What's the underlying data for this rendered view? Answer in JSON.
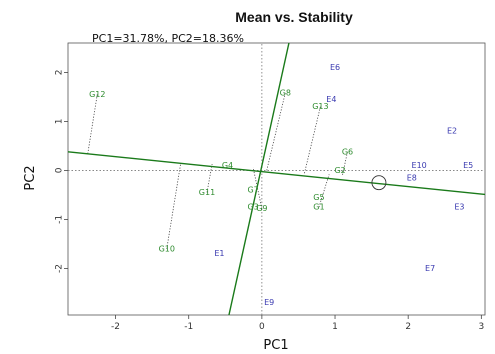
{
  "chart_data": {
    "type": "scatter",
    "title": "Mean vs. Stability",
    "subtitle": "PC1=31.78%, PC2=18.36%",
    "xlabel": "PC1",
    "ylabel": "PC2",
    "xlim": [
      -2.65,
      3.05
    ],
    "ylim": [
      -2.95,
      2.6
    ],
    "xticks": [
      -2,
      -1,
      0,
      1,
      2,
      3
    ],
    "yticks": [
      -2,
      -1,
      0,
      1,
      2
    ],
    "grid": false,
    "colors": {
      "genotype": "#2e8b2e",
      "environment": "#3a3ab0",
      "axis": "#1a7a1a",
      "projection": "#444444"
    },
    "genotypes": [
      {
        "name": "G1",
        "x": 0.78,
        "y": -0.75
      },
      {
        "name": "G2",
        "x": 1.07,
        "y": 0.0
      },
      {
        "name": "G3",
        "x": -0.12,
        "y": -0.75
      },
      {
        "name": "G4",
        "x": -0.47,
        "y": 0.1
      },
      {
        "name": "G5",
        "x": 0.78,
        "y": -0.55
      },
      {
        "name": "G6",
        "x": 1.17,
        "y": 0.38
      },
      {
        "name": "G7",
        "x": -0.12,
        "y": -0.4
      },
      {
        "name": "G8",
        "x": 0.32,
        "y": 1.58
      },
      {
        "name": "G9",
        "x": 0.0,
        "y": -0.78
      },
      {
        "name": "G10",
        "x": -1.3,
        "y": -1.6
      },
      {
        "name": "G11",
        "x": -0.75,
        "y": -0.45
      },
      {
        "name": "G12",
        "x": -2.25,
        "y": 1.55
      },
      {
        "name": "G13",
        "x": 0.8,
        "y": 1.3
      }
    ],
    "environments": [
      {
        "name": "E1",
        "x": -0.58,
        "y": -1.7
      },
      {
        "name": "E2",
        "x": 2.6,
        "y": 0.8
      },
      {
        "name": "E3",
        "x": 2.7,
        "y": -0.75
      },
      {
        "name": "E4",
        "x": 0.95,
        "y": 1.45
      },
      {
        "name": "E5",
        "x": 2.82,
        "y": 0.1
      },
      {
        "name": "E6",
        "x": 1.0,
        "y": 2.1
      },
      {
        "name": "E7",
        "x": 2.3,
        "y": -2.0
      },
      {
        "name": "E8",
        "x": 2.05,
        "y": -0.15
      },
      {
        "name": "E9",
        "x": 0.1,
        "y": -2.7
      },
      {
        "name": "E10",
        "x": 2.15,
        "y": 0.1
      }
    ],
    "mean_axis": {
      "from": [
        -2.65,
        0.38
      ],
      "to": [
        3.05,
        -0.49
      ]
    },
    "stability_axis": {
      "from": [
        -0.45,
        -2.95
      ],
      "to": [
        0.37,
        2.6
      ]
    },
    "mean_environment_marker": {
      "x": 1.6,
      "y": -0.25
    },
    "projections": [
      {
        "label": "G12",
        "from": [
          -2.25,
          1.55
        ],
        "to": [
          -2.38,
          0.34
        ]
      },
      {
        "label": "G10",
        "from": [
          -1.3,
          -1.6
        ],
        "to": [
          -1.11,
          0.14
        ]
      },
      {
        "label": "G11",
        "from": [
          -0.75,
          -0.45
        ],
        "to": [
          -0.68,
          0.13
        ]
      },
      {
        "label": "G8",
        "from": [
          0.32,
          1.58
        ],
        "to": [
          0.06,
          -0.04
        ]
      },
      {
        "label": "G13",
        "from": [
          0.8,
          1.3
        ],
        "to": [
          0.58,
          -0.07
        ]
      },
      {
        "label": "G6",
        "from": [
          1.17,
          0.38
        ],
        "to": [
          1.1,
          -0.11
        ]
      },
      {
        "label": "G1",
        "from": [
          0.78,
          -0.75
        ],
        "to": [
          0.92,
          -0.08
        ]
      },
      {
        "label": "G9",
        "from": [
          0.0,
          -0.78
        ],
        "to": [
          -0.12,
          0.06
        ]
      }
    ]
  }
}
